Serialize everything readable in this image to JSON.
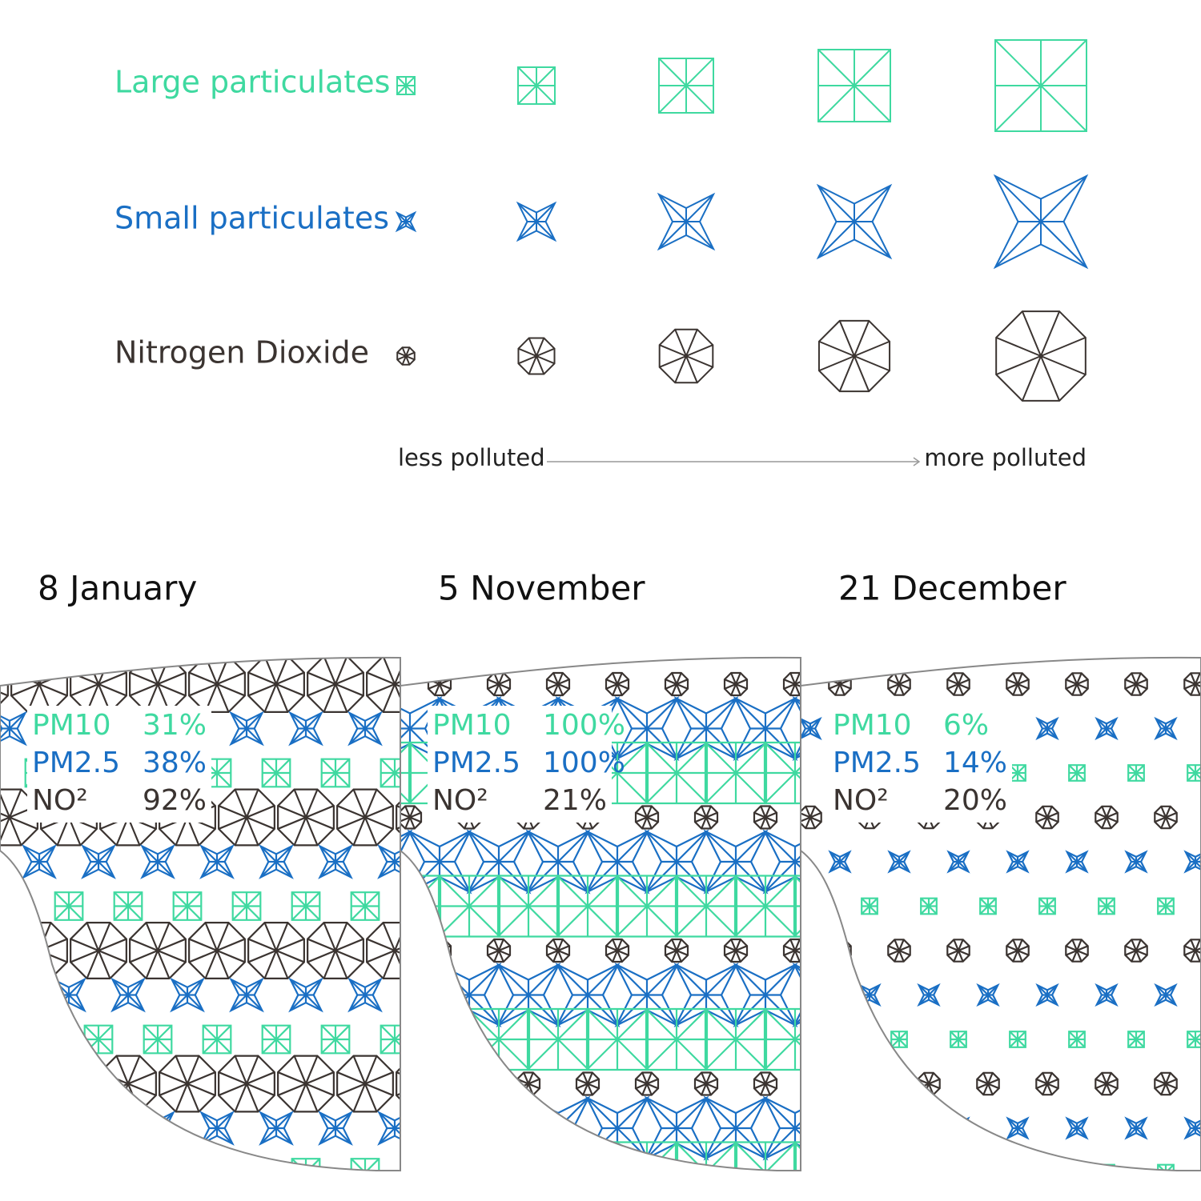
{
  "legend": {
    "rows": [
      {
        "label": "Large particulates",
        "color": "#3fd9a0"
      },
      {
        "label": "Small particulates",
        "color": "#1a6fc4"
      },
      {
        "label": "Nitrogen Dioxide",
        "color": "#3b3431"
      }
    ],
    "less": "less polluted",
    "more": "more polluted"
  },
  "panels": [
    {
      "date": "8 January",
      "readings": [
        {
          "name": "PM10",
          "value": 31,
          "label": "31%"
        },
        {
          "name": "PM2.5",
          "value": 38,
          "label": "38%"
        },
        {
          "name": "NO²",
          "value": 92,
          "label": "92%"
        }
      ]
    },
    {
      "date": "5 November",
      "readings": [
        {
          "name": "PM10",
          "value": 100,
          "label": "100%"
        },
        {
          "name": "PM2.5",
          "value": 100,
          "label": "100%"
        },
        {
          "name": "NO²",
          "value": 21,
          "label": "21%"
        }
      ]
    },
    {
      "date": "21 December",
      "readings": [
        {
          "name": "PM10",
          "value": 6,
          "label": "6%"
        },
        {
          "name": "PM2.5",
          "value": 14,
          "label": "14%"
        },
        {
          "name": "NO²",
          "value": 20,
          "label": "20%"
        }
      ]
    }
  ]
}
